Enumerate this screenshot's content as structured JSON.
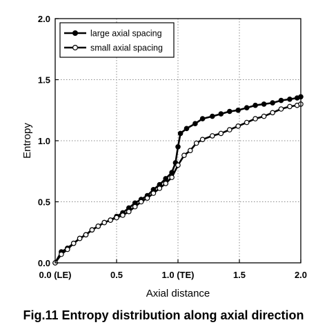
{
  "chart_data": {
    "type": "line",
    "title": "",
    "caption": "Fig.11 Entropy distribution along axial direction",
    "xlabel": "Axial distance",
    "ylabel": "Entropy",
    "xlim": [
      0,
      2.0
    ],
    "ylim": [
      0,
      2.0
    ],
    "grid": true,
    "legend_position": "top-left",
    "x_ticks": [
      {
        "value": 0.0,
        "label": "0.0 (LE)"
      },
      {
        "value": 0.5,
        "label": "0.5"
      },
      {
        "value": 1.0,
        "label": "1.0 (TE)"
      },
      {
        "value": 1.5,
        "label": "1.5"
      },
      {
        "value": 2.0,
        "label": "2.0"
      }
    ],
    "y_ticks": [
      {
        "value": 0.0,
        "label": "0.0"
      },
      {
        "value": 0.5,
        "label": "0.5"
      },
      {
        "value": 1.0,
        "label": "1.0"
      },
      {
        "value": 1.5,
        "label": "1.5"
      },
      {
        "value": 2.0,
        "label": "2.0"
      }
    ],
    "series": [
      {
        "name": "large axial spacing",
        "marker": "filled-circle",
        "color": "#000000",
        "points": [
          [
            0.0,
            0.0
          ],
          [
            0.05,
            0.09
          ],
          [
            0.1,
            0.12
          ],
          [
            0.15,
            0.16
          ],
          [
            0.2,
            0.2
          ],
          [
            0.25,
            0.23
          ],
          [
            0.3,
            0.27
          ],
          [
            0.35,
            0.3
          ],
          [
            0.4,
            0.33
          ],
          [
            0.45,
            0.35
          ],
          [
            0.5,
            0.38
          ],
          [
            0.55,
            0.41
          ],
          [
            0.6,
            0.45
          ],
          [
            0.65,
            0.49
          ],
          [
            0.7,
            0.52
          ],
          [
            0.75,
            0.55
          ],
          [
            0.8,
            0.6
          ],
          [
            0.85,
            0.64
          ],
          [
            0.9,
            0.69
          ],
          [
            0.95,
            0.74
          ],
          [
            0.98,
            0.82
          ],
          [
            1.0,
            0.95
          ],
          [
            1.02,
            1.06
          ],
          [
            1.07,
            1.1
          ],
          [
            1.14,
            1.14
          ],
          [
            1.2,
            1.18
          ],
          [
            1.28,
            1.2
          ],
          [
            1.35,
            1.22
          ],
          [
            1.42,
            1.24
          ],
          [
            1.49,
            1.25
          ],
          [
            1.56,
            1.27
          ],
          [
            1.63,
            1.29
          ],
          [
            1.7,
            1.3
          ],
          [
            1.77,
            1.31
          ],
          [
            1.84,
            1.33
          ],
          [
            1.91,
            1.34
          ],
          [
            1.97,
            1.35
          ],
          [
            2.0,
            1.36
          ]
        ]
      },
      {
        "name": "small axial spacing",
        "marker": "open-circle",
        "color": "#000000",
        "points": [
          [
            0.0,
            0.0
          ],
          [
            0.05,
            0.07
          ],
          [
            0.1,
            0.11
          ],
          [
            0.15,
            0.16
          ],
          [
            0.2,
            0.2
          ],
          [
            0.25,
            0.23
          ],
          [
            0.3,
            0.27
          ],
          [
            0.35,
            0.3
          ],
          [
            0.4,
            0.33
          ],
          [
            0.45,
            0.35
          ],
          [
            0.5,
            0.37
          ],
          [
            0.55,
            0.39
          ],
          [
            0.6,
            0.42
          ],
          [
            0.65,
            0.46
          ],
          [
            0.7,
            0.5
          ],
          [
            0.75,
            0.53
          ],
          [
            0.8,
            0.57
          ],
          [
            0.85,
            0.61
          ],
          [
            0.9,
            0.65
          ],
          [
            0.95,
            0.7
          ],
          [
            1.0,
            0.8
          ],
          [
            1.05,
            0.88
          ],
          [
            1.1,
            0.92
          ],
          [
            1.15,
            0.98
          ],
          [
            1.2,
            1.01
          ],
          [
            1.28,
            1.04
          ],
          [
            1.35,
            1.06
          ],
          [
            1.42,
            1.09
          ],
          [
            1.49,
            1.12
          ],
          [
            1.56,
            1.15
          ],
          [
            1.63,
            1.18
          ],
          [
            1.7,
            1.2
          ],
          [
            1.77,
            1.23
          ],
          [
            1.84,
            1.26
          ],
          [
            1.91,
            1.28
          ],
          [
            1.97,
            1.29
          ],
          [
            2.0,
            1.3
          ]
        ]
      }
    ]
  }
}
